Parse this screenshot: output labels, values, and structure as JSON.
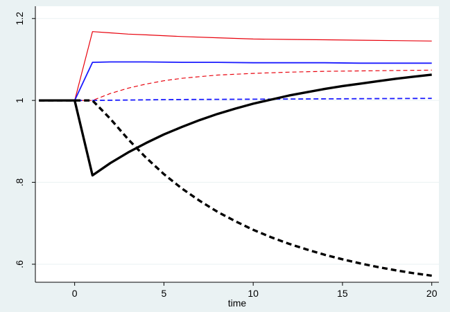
{
  "chart_data": {
    "type": "line",
    "title": "",
    "xlabel": "time",
    "ylabel": "",
    "xlim": [
      -2.2,
      20.4
    ],
    "ylim": [
      0.556,
      1.23
    ],
    "x_ticks": [
      0,
      5,
      10,
      15,
      20
    ],
    "y_ticks": [
      0.6,
      0.8,
      1,
      1.2
    ],
    "x_tick_labels": [
      "0",
      "5",
      "10",
      "15",
      "20"
    ],
    "y_tick_labels": [
      ".6",
      ".8",
      "1",
      "1.2"
    ],
    "grid": true,
    "legend": "none",
    "colors": {
      "outer_background": "#eaf2f3",
      "plot_background": "#ffffff",
      "grid": "#eaf2f3",
      "red": "#e8000b",
      "blue": "#1a1aff",
      "black": "#000000"
    },
    "series": [
      {
        "color": "red",
        "style": "solid",
        "weight": "thin",
        "x": [
          -2,
          0,
          1,
          2,
          3,
          4,
          5,
          6,
          8,
          10,
          12,
          14,
          16,
          18,
          20
        ],
        "y": [
          1,
          1,
          1.168,
          1.165,
          1.162,
          1.16,
          1.158,
          1.156,
          1.153,
          1.15,
          1.149,
          1.148,
          1.147,
          1.146,
          1.145
        ]
      },
      {
        "color": "blue",
        "style": "solid",
        "weight": "normal",
        "x": [
          -2,
          0,
          1,
          2,
          3,
          4,
          6,
          8,
          10,
          12,
          14,
          16,
          18,
          20
        ],
        "y": [
          1,
          1,
          1.093,
          1.094,
          1.094,
          1.094,
          1.093,
          1.093,
          1.092,
          1.092,
          1.092,
          1.091,
          1.091,
          1.091
        ]
      },
      {
        "color": "red",
        "style": "dashed",
        "weight": "thin",
        "x": [
          -2,
          0,
          1,
          2,
          3,
          4,
          5,
          6,
          7,
          8,
          10,
          12,
          14,
          16,
          18,
          20
        ],
        "y": [
          1,
          1,
          1,
          1.017,
          1.03,
          1.04,
          1.048,
          1.054,
          1.058,
          1.062,
          1.066,
          1.069,
          1.071,
          1.072,
          1.073,
          1.074
        ]
      },
      {
        "color": "blue",
        "style": "dashed",
        "weight": "normal",
        "x": [
          -2,
          0,
          1,
          5,
          10,
          15,
          20
        ],
        "y": [
          1,
          1,
          1,
          1.002,
          1.003,
          1.004,
          1.005
        ]
      },
      {
        "color": "black",
        "style": "solid",
        "weight": "bold",
        "x": [
          -2,
          0,
          1,
          2,
          3,
          4,
          5,
          6,
          7,
          8,
          9,
          10,
          11,
          12,
          13,
          14,
          15,
          16,
          17,
          18,
          19,
          20
        ],
        "y": [
          1,
          1,
          0.817,
          0.847,
          0.873,
          0.896,
          0.917,
          0.935,
          0.952,
          0.967,
          0.98,
          0.992,
          1.002,
          1.012,
          1.02,
          1.028,
          1.035,
          1.041,
          1.047,
          1.053,
          1.058,
          1.063
        ]
      },
      {
        "color": "black",
        "style": "dashed",
        "weight": "bold",
        "x": [
          -2,
          0,
          1,
          2,
          3,
          4,
          5,
          6,
          7,
          8,
          9,
          10,
          11,
          12,
          13,
          14,
          15,
          16,
          17,
          18,
          19,
          20
        ],
        "y": [
          1,
          1,
          1,
          0.955,
          0.905,
          0.86,
          0.82,
          0.785,
          0.755,
          0.728,
          0.705,
          0.684,
          0.666,
          0.65,
          0.636,
          0.623,
          0.612,
          0.602,
          0.593,
          0.585,
          0.578,
          0.572
        ]
      }
    ]
  }
}
